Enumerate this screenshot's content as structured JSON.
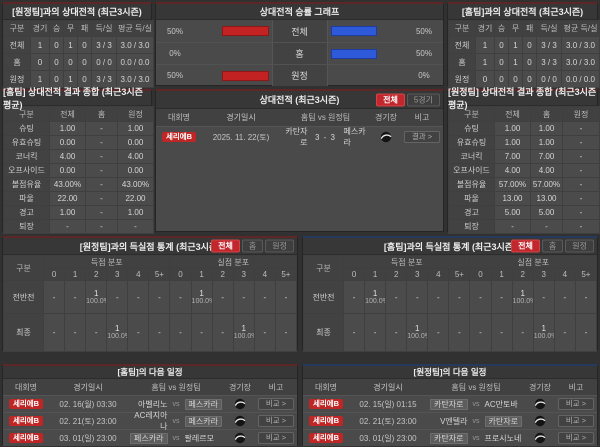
{
  "labels": {
    "vs": "vs"
  },
  "colors": {
    "accent_red": "#c1272d",
    "bar_red": "#c32222",
    "bar_blue": "#2e59d9"
  },
  "h2h_left": {
    "title": "[원정팀]과의 상대전적 (최근3시즌)",
    "columns": [
      "구분",
      "경기",
      "승",
      "무",
      "패",
      "득/실",
      "평균 득/실"
    ],
    "rows": [
      {
        "label": "전체",
        "cells": [
          "1",
          "0",
          "1",
          "0",
          "3 / 3",
          "3.0 / 3.0"
        ]
      },
      {
        "label": "홈",
        "cells": [
          "0",
          "0",
          "0",
          "0",
          "0 / 0",
          "0.0 / 0.0"
        ]
      },
      {
        "label": "원정",
        "cells": [
          "1",
          "0",
          "1",
          "0",
          "3 / 3",
          "3.0 / 3.0"
        ]
      }
    ]
  },
  "winrate": {
    "title": "상대전적 승률 그래프",
    "rows": [
      {
        "label": "전체",
        "left_label": "50%",
        "left_pct": 50,
        "right_label": "50%",
        "right_pct": 50
      },
      {
        "label": "홈",
        "left_label": "0%",
        "left_pct": 0,
        "right_label": "50%",
        "right_pct": 50
      },
      {
        "label": "원정",
        "left_label": "50%",
        "left_pct": 50,
        "right_label": "0%",
        "right_pct": 0
      }
    ]
  },
  "h2h_right": {
    "title": "[홈팀]과의 상대전적 (최근3시즌)",
    "columns": [
      "구분",
      "경기",
      "승",
      "무",
      "패",
      "득/실",
      "평균 득/실"
    ],
    "rows": [
      {
        "label": "전체",
        "cells": [
          "1",
          "0",
          "1",
          "0",
          "3 / 3",
          "3.0 / 3.0"
        ]
      },
      {
        "label": "홈",
        "cells": [
          "1",
          "0",
          "1",
          "0",
          "3 / 3",
          "3.0 / 3.0"
        ]
      },
      {
        "label": "원정",
        "cells": [
          "0",
          "0",
          "0",
          "0",
          "0 / 0",
          "0.0 / 0.0"
        ]
      }
    ]
  },
  "summary_left": {
    "title": "[홈팀] 상대전적 결과 종합 (최근3시즌 평균)",
    "columns": [
      "구분",
      "전체",
      "홈",
      "원정"
    ],
    "rows": [
      {
        "label": "슈팅",
        "cells": [
          "1.00",
          "-",
          "1.00"
        ]
      },
      {
        "label": "유효슈팅",
        "cells": [
          "0.00",
          "-",
          "0.00"
        ]
      },
      {
        "label": "코너킥",
        "cells": [
          "4.00",
          "-",
          "4.00"
        ]
      },
      {
        "label": "오프사이드",
        "cells": [
          "0.00",
          "-",
          "0.00"
        ]
      },
      {
        "label": "볼점유율",
        "cells": [
          "43.00%",
          "-",
          "43.00%"
        ]
      },
      {
        "label": "파울",
        "cells": [
          "22.00",
          "-",
          "22.00"
        ]
      },
      {
        "label": "경고",
        "cells": [
          "1.00",
          "-",
          "1.00"
        ]
      },
      {
        "label": "퇴장",
        "cells": [
          "-",
          "-",
          "-"
        ]
      }
    ]
  },
  "matches": {
    "title": "상대전적 (최근3시즌)",
    "tabs": [
      {
        "label": "전체"
      },
      {
        "label": "5경기"
      }
    ],
    "columns": [
      "대회명",
      "경기일시",
      "홈팀 vs 원정팀",
      "경기장",
      "비고"
    ],
    "row": {
      "league": "세리에B",
      "datetime": "2025. 11. 22(토)",
      "home": "카탄자로",
      "score": "3 - 3",
      "away": "페스카라",
      "action": "결과 >"
    }
  },
  "summary_right": {
    "title": "[원정팀] 상대전적 결과 종합 (최근3시즌 평균)",
    "columns": [
      "구분",
      "전체",
      "홈",
      "원정"
    ],
    "rows": [
      {
        "label": "슈팅",
        "cells": [
          "1.00",
          "1.00",
          "-"
        ]
      },
      {
        "label": "유효슈팅",
        "cells": [
          "1.00",
          "1.00",
          "-"
        ]
      },
      {
        "label": "코너킥",
        "cells": [
          "7.00",
          "7.00",
          "-"
        ]
      },
      {
        "label": "오프사이드",
        "cells": [
          "4.00",
          "4.00",
          "-"
        ]
      },
      {
        "label": "볼점유율",
        "cells": [
          "57.00%",
          "57.00%",
          "-"
        ]
      },
      {
        "label": "파울",
        "cells": [
          "13.00",
          "13.00",
          "-"
        ]
      },
      {
        "label": "경고",
        "cells": [
          "5.00",
          "5.00",
          "-"
        ]
      },
      {
        "label": "퇴장",
        "cells": [
          "-",
          "-",
          "-"
        ]
      }
    ]
  },
  "goals_left": {
    "title": "[원정팀]과의 득실점 통계 (최근3시즌)",
    "tabs": [
      {
        "label": "전체"
      },
      {
        "label": "홈"
      },
      {
        "label": "원정"
      }
    ],
    "col_label": "구분",
    "groups": [
      "득점 분포",
      "실점 분포"
    ],
    "score_cols": [
      "0",
      "1",
      "2",
      "3",
      "4",
      "5+"
    ],
    "rows": [
      {
        "label": "전반전",
        "scored": [
          "-",
          "-",
          {
            "n": "1",
            "p": "100.0%"
          },
          "-",
          "-",
          "-"
        ],
        "conceded": [
          "-",
          {
            "n": "1",
            "p": "100.0%"
          },
          "-",
          "-",
          "-",
          "-"
        ]
      },
      {
        "label": "최종",
        "scored": [
          "-",
          "-",
          "-",
          {
            "n": "1",
            "p": "100.0%"
          },
          "-",
          "-"
        ],
        "conceded": [
          "-",
          "-",
          "-",
          {
            "n": "1",
            "p": "100.0%"
          },
          "-",
          "-"
        ]
      }
    ]
  },
  "goals_right": {
    "title": "[홈팀]과의 득실점 통계 (최근3시즌)",
    "tabs": [
      {
        "label": "전체"
      },
      {
        "label": "홈"
      },
      {
        "label": "원정"
      }
    ],
    "col_label": "구분",
    "groups": [
      "득점 분포",
      "실점 분포"
    ],
    "score_cols": [
      "0",
      "1",
      "2",
      "3",
      "4",
      "5+"
    ],
    "rows": [
      {
        "label": "전반전",
        "scored": [
          "-",
          {
            "n": "1",
            "p": "100.0%"
          },
          "-",
          "-",
          "-",
          "-"
        ],
        "conceded": [
          "-",
          "-",
          {
            "n": "1",
            "p": "100.0%"
          },
          "-",
          "-",
          "-"
        ]
      },
      {
        "label": "최종",
        "scored": [
          "-",
          "-",
          "-",
          {
            "n": "1",
            "p": "100.0%"
          },
          "-",
          "-"
        ],
        "conceded": [
          "-",
          "-",
          "-",
          {
            "n": "1",
            "p": "100.0%"
          },
          "-",
          "-"
        ]
      }
    ]
  },
  "schedule_left": {
    "title": "[홈팀]의 다음 일정",
    "columns": [
      "대회명",
      "경기일시",
      "홈팀 vs 원정팀",
      "경기장",
      "비고"
    ],
    "action": "비교 >",
    "rows": [
      {
        "league": "세리에B",
        "datetime": "02. 16(월) 03:30",
        "home": "아벨리노",
        "away": "페스카라",
        "home_hl": false,
        "away_hl": true
      },
      {
        "league": "세리에B",
        "datetime": "02. 21(토) 23:00",
        "home": "AC레지아나",
        "away": "페스카라",
        "home_hl": false,
        "away_hl": true
      },
      {
        "league": "세리에B",
        "datetime": "03. 01(일) 23:00",
        "home": "페스카라",
        "away": "팔레르모",
        "home_hl": true,
        "away_hl": false
      }
    ]
  },
  "schedule_right": {
    "title": "[원정팀]의 다음 일정",
    "columns": [
      "대회명",
      "경기일시",
      "홈팀 vs 원정팀",
      "경기장",
      "비고"
    ],
    "action": "비교 >",
    "rows": [
      {
        "league": "세리에B",
        "datetime": "02. 15(일) 01:15",
        "home": "카탄자로",
        "away": "AC만토바",
        "home_hl": true,
        "away_hl": false
      },
      {
        "league": "세리에B",
        "datetime": "02. 21(토) 23:00",
        "home": "V엔텔라",
        "away": "카탄자로",
        "home_hl": false,
        "away_hl": true
      },
      {
        "league": "세리에B",
        "datetime": "03. 01(일) 23:00",
        "home": "카탄자로",
        "away": "프로시노네",
        "home_hl": true,
        "away_hl": false
      }
    ]
  }
}
